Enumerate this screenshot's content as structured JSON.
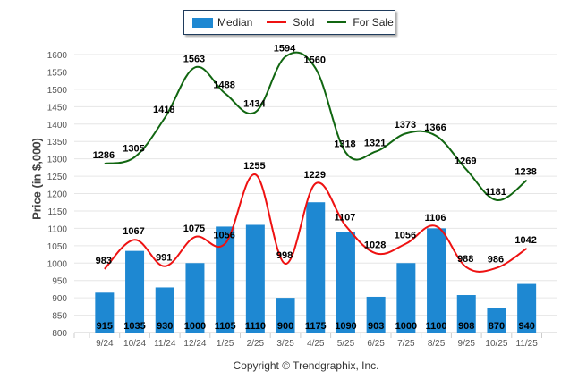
{
  "colors": {
    "median": "#1e88d2",
    "sold": "#ee1111",
    "for_sale": "#116611",
    "grid": "#e6e6e6",
    "axis_text": "#555555",
    "label_text": "#000000"
  },
  "legend": {
    "items": [
      {
        "label": "Median",
        "kind": "bar",
        "color": "#1e88d2"
      },
      {
        "label": "Sold",
        "kind": "line",
        "color": "#ee1111"
      },
      {
        "label": "For Sale",
        "kind": "line",
        "color": "#116611"
      }
    ]
  },
  "copyright": "Copyright © Trendgraphix, Inc.",
  "chart_data": {
    "type": "bar",
    "title": "",
    "xlabel": "",
    "ylabel": "Price (in $,000)",
    "ylim": [
      800,
      1600
    ],
    "yticks": [
      800,
      850,
      900,
      950,
      1000,
      1050,
      1100,
      1150,
      1200,
      1250,
      1300,
      1350,
      1400,
      1450,
      1500,
      1550,
      1600
    ],
    "grid": true,
    "legend_position": "top-center",
    "categories": [
      "9/24",
      "10/24",
      "11/24",
      "12/24",
      "1/25",
      "2/25",
      "3/25",
      "4/25",
      "5/25",
      "6/25",
      "7/25",
      "8/25",
      "9/25",
      "10/25",
      "11/25"
    ],
    "series": [
      {
        "name": "Median",
        "type": "bar",
        "values": [
          915,
          1035,
          930,
          1000,
          1105,
          1110,
          900,
          1175,
          1090,
          903,
          1000,
          1100,
          908,
          870,
          940
        ]
      },
      {
        "name": "Sold",
        "type": "line",
        "values": [
          983,
          1067,
          991,
          1075,
          1056,
          1255,
          998,
          1229,
          1107,
          1028,
          1056,
          1106,
          988,
          986,
          1042
        ]
      },
      {
        "name": "For Sale",
        "type": "line",
        "values": [
          1286,
          1305,
          1418,
          1563,
          1488,
          1434,
          1594,
          1560,
          1318,
          1321,
          1373,
          1366,
          1269,
          1181,
          1238
        ]
      }
    ]
  }
}
